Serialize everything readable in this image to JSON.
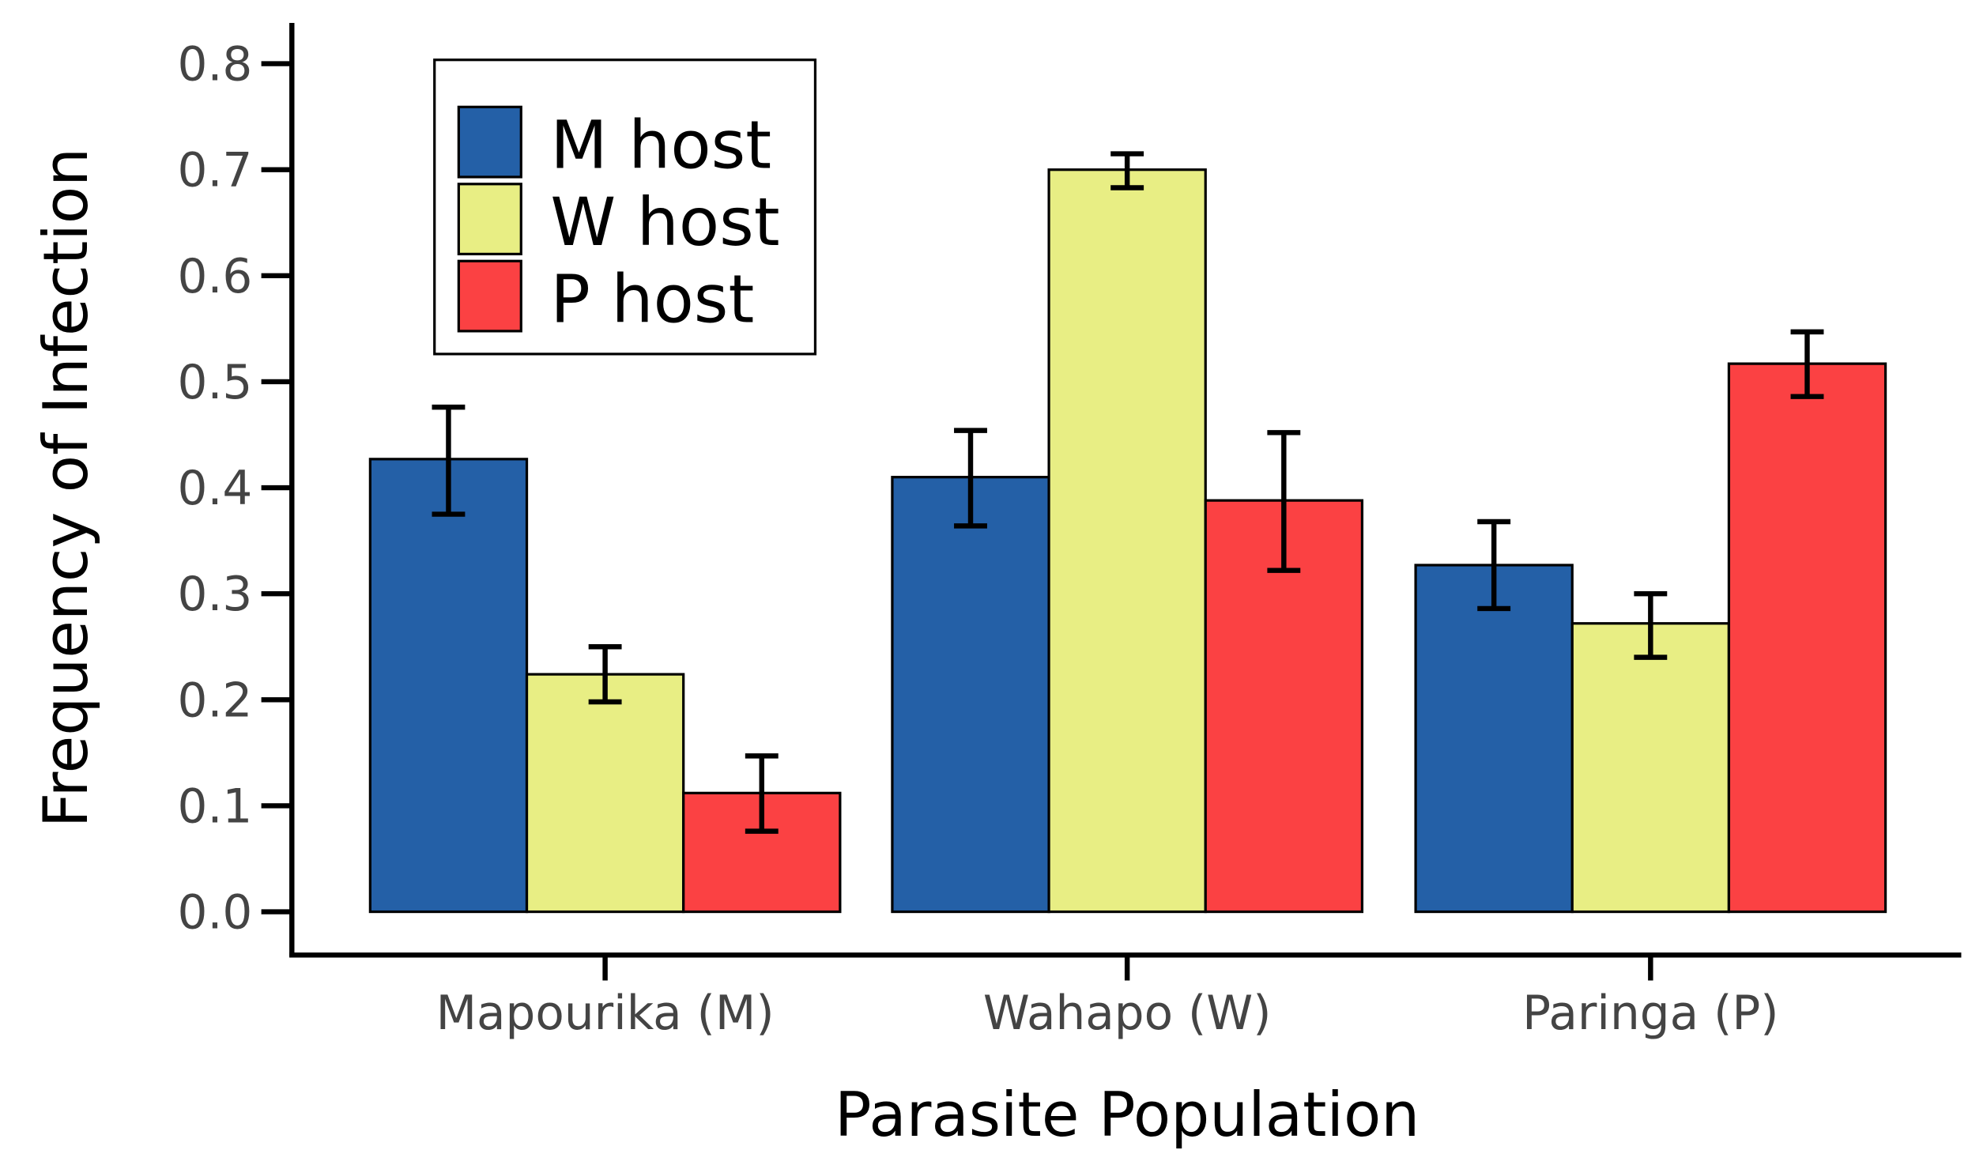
{
  "chart_data": {
    "type": "bar",
    "title": "",
    "xlabel": "Parasite Population",
    "ylabel": "Frequency of Infection",
    "ylim": [
      0,
      0.8
    ],
    "yticks": [
      "0.0",
      "0.1",
      "0.2",
      "0.3",
      "0.4",
      "0.5",
      "0.6",
      "0.7",
      "0.8"
    ],
    "categories": [
      "Mapourika (M)",
      "Wahapo (W)",
      "Paringa (P)"
    ],
    "legend_position": "top-left",
    "series": [
      {
        "name": "M host",
        "color": "#2460a7",
        "values": [
          0.427,
          0.41,
          0.327
        ],
        "err_low": [
          0.375,
          0.364,
          0.286
        ],
        "err_high": [
          0.476,
          0.454,
          0.368
        ]
      },
      {
        "name": "W host",
        "color": "#e8ee84",
        "values": [
          0.224,
          0.7,
          0.272
        ],
        "err_low": [
          0.198,
          0.683,
          0.24
        ],
        "err_high": [
          0.25,
          0.715,
          0.3
        ]
      },
      {
        "name": "P host",
        "color": "#fb4143",
        "values": [
          0.112,
          0.388,
          0.517
        ],
        "err_low": [
          0.076,
          0.322,
          0.486
        ],
        "err_high": [
          0.147,
          0.452,
          0.547
        ]
      }
    ]
  }
}
